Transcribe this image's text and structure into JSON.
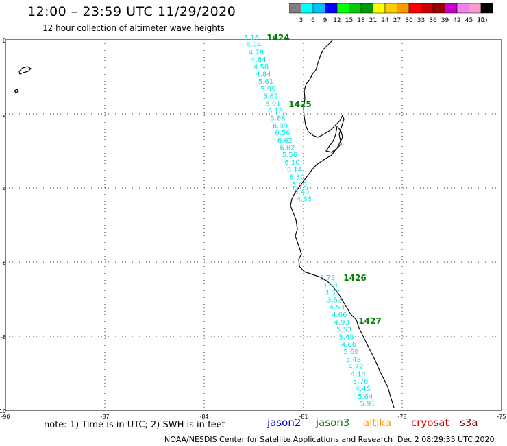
{
  "header": {
    "title": "12:00 – 23:59 UTC 11/29/2020",
    "subtitle": "12 hour collection of altimeter wave heights"
  },
  "colorbar": {
    "ticks": [
      "3",
      "6",
      "9",
      "12",
      "15",
      "18",
      "21",
      "24",
      "27",
      "30",
      "33",
      "36",
      "39",
      "42",
      "45",
      "70"
    ],
    "unit": "(ft)",
    "colors": [
      "#7f7f7f",
      "#00ffff",
      "#00bfff",
      "#0000ff",
      "#00ff00",
      "#00cc00",
      "#009900",
      "#ffff00",
      "#ffcc00",
      "#ff9900",
      "#ff0000",
      "#cc0000",
      "#990000",
      "#cc00cc",
      "#ee82ee",
      "#ff99cc",
      "#000000"
    ]
  },
  "axes": {
    "lat_labels": [
      "0",
      "-2",
      "-4",
      "-6",
      "-8",
      "-10"
    ],
    "lon_labels": [
      "-90",
      "-87",
      "-84",
      "-81",
      "-78",
      "-75"
    ]
  },
  "passes": [
    {
      "id": "1424",
      "label": "1424",
      "color": "#008000"
    },
    {
      "id": "1425",
      "label": "1425",
      "color": "#008000"
    },
    {
      "id": "1426",
      "label": "1426",
      "color": "#008000"
    },
    {
      "id": "1427",
      "label": "1427",
      "color": "#008000"
    }
  ],
  "track1": {
    "color": "#00e5e5",
    "values": [
      "5.16",
      "5.24",
      "4.78",
      "4.84",
      "4.58",
      "4.84",
      "5.61",
      "5.99",
      "5.62",
      "5.91",
      "6.18",
      "5.88",
      "6.39",
      "6.56",
      "6.62",
      "6.62",
      "5.56",
      "6.10",
      "6.14",
      "6.30",
      "5.40",
      "5.45",
      "4.33"
    ]
  },
  "track2": {
    "color": "#00e5e5",
    "values": [
      "3.73",
      "3.63",
      "3.37",
      "3.53",
      "4.53",
      "4.66",
      "4.93",
      "5.53",
      "5.45",
      "4.86",
      "5.69",
      "5.48",
      "4.72",
      "4.14",
      "5.76",
      "4.45",
      "5.64",
      "5.91"
    ]
  },
  "note": "note: 1) Time is in UTC; 2) SWH is in feet",
  "legend": [
    {
      "label": "jason2",
      "color": "#0000cc"
    },
    {
      "label": "jason3",
      "color": "#008000"
    },
    {
      "label": "altika",
      "color": "#ff9900"
    },
    {
      "label": "cryosat",
      "color": "#dd0000"
    },
    {
      "label": "s3a",
      "color": "#8b0000"
    }
  ],
  "footer": {
    "credit": "NOAA/NESDIS Center for Satellite Applications and Research",
    "timestamp": "Dec  2 08:29:35 UTC 2020"
  }
}
